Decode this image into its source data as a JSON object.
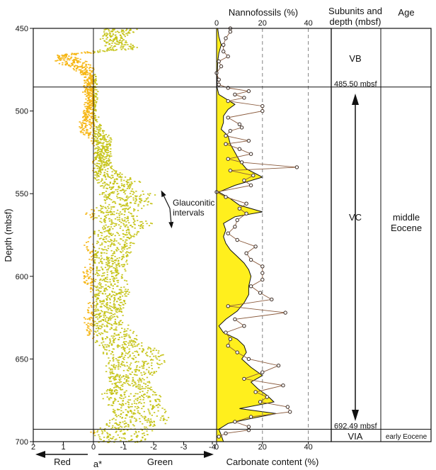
{
  "chart_data": {
    "type": "scatter",
    "depth_axis": {
      "label": "Depth (mbsf)",
      "min": 450,
      "max": 700,
      "ticks": [
        450,
        500,
        550,
        600,
        650,
        700
      ]
    },
    "color_panel": {
      "x_label": "a*",
      "x_range": [
        2,
        -4
      ],
      "x_ticks": [
        "2",
        "1",
        "0",
        "-1",
        "-2",
        "-3",
        "-4"
      ],
      "left_arrow_label": "Red",
      "right_arrow_label": "Green",
      "annotation": {
        "line1": "Glauconitic",
        "line2": "intervals",
        "arrow_points": [
          [
            -2.25,
            548
          ],
          [
            -2.6,
            571
          ]
        ]
      },
      "colors": {
        "red_points": "#f6b614",
        "green_points": "#c6c41a"
      },
      "profile": [
        [
          450,
          -0.35,
          -1.45
        ],
        [
          456,
          -0.25,
          -0.95
        ],
        [
          462,
          -0.4,
          -1.5
        ],
        [
          466,
          1.2,
          0.8
        ],
        [
          470,
          1.3,
          0.2
        ],
        [
          475,
          0.6,
          0.0
        ],
        [
          480,
          0.25,
          -0.05
        ],
        [
          486,
          0.35,
          -0.05
        ],
        [
          492,
          0.25,
          -0.1
        ],
        [
          500,
          0.3,
          -0.05
        ],
        [
          510,
          0.55,
          -0.25
        ],
        [
          518,
          0.1,
          -0.6
        ],
        [
          524,
          -0.1,
          -0.5
        ],
        [
          530,
          0.1,
          -0.5
        ],
        [
          536,
          0.0,
          -0.7
        ],
        [
          542,
          0.0,
          -1.5
        ],
        [
          546,
          -0.3,
          -1.2
        ],
        [
          550,
          -0.2,
          -2.0
        ],
        [
          556,
          -0.3,
          -1.9
        ],
        [
          562,
          0.3,
          -1.3
        ],
        [
          568,
          -0.3,
          -1.9
        ],
        [
          574,
          0.1,
          -1.4
        ],
        [
          580,
          0.3,
          -1.3
        ],
        [
          590,
          0.1,
          -1.1
        ],
        [
          600,
          0.45,
          -1.0
        ],
        [
          610,
          0.05,
          -1.1
        ],
        [
          618,
          0.2,
          -1.0
        ],
        [
          626,
          0.3,
          -0.9
        ],
        [
          632,
          0.4,
          -1.3
        ],
        [
          638,
          0.0,
          -1.5
        ],
        [
          646,
          -0.3,
          -2.3
        ],
        [
          654,
          -0.4,
          -2.3
        ],
        [
          660,
          -0.4,
          -1.9
        ],
        [
          666,
          -0.6,
          -1.8
        ],
        [
          672,
          -0.25,
          -2.2
        ],
        [
          678,
          -0.5,
          -2.2
        ],
        [
          684,
          -0.6,
          -2.7
        ],
        [
          690,
          -0.3,
          -2.3
        ],
        [
          694,
          0.1,
          -1.9
        ],
        [
          700,
          -0.2,
          -1.6
        ]
      ]
    },
    "carbonate_panel": {
      "top_label": "Nannofossils (%)",
      "bottom_label": "Carbonate content (%)",
      "x_range": [
        0,
        50
      ],
      "x_ticks": [
        0,
        20,
        40
      ],
      "dashed_gridlines": [
        20,
        40
      ],
      "colors": {
        "fill": "#ffef1d",
        "nannofossil_line": "#8a5a3c"
      },
      "carbonate": [
        [
          450,
          0.5
        ],
        [
          455,
          1
        ],
        [
          460,
          2
        ],
        [
          465,
          1
        ],
        [
          470,
          0.5
        ],
        [
          480,
          0.3
        ],
        [
          485.5,
          0.2
        ],
        [
          490,
          1
        ],
        [
          496,
          8
        ],
        [
          499,
          5
        ],
        [
          503,
          3
        ],
        [
          507,
          3
        ],
        [
          511,
          2
        ],
        [
          515,
          5
        ],
        [
          520,
          6
        ],
        [
          525,
          8
        ],
        [
          530,
          10
        ],
        [
          535,
          13
        ],
        [
          540,
          20
        ],
        [
          545,
          8
        ],
        [
          549,
          1
        ],
        [
          553,
          6
        ],
        [
          557,
          10
        ],
        [
          561,
          20
        ],
        [
          564,
          8
        ],
        [
          568,
          3
        ],
        [
          572,
          4
        ],
        [
          576,
          3
        ],
        [
          580,
          4
        ],
        [
          584,
          6
        ],
        [
          588,
          9
        ],
        [
          592,
          12
        ],
        [
          596,
          14
        ],
        [
          600,
          15
        ],
        [
          606,
          14
        ],
        [
          611,
          14
        ],
        [
          616,
          12
        ],
        [
          621,
          9
        ],
        [
          626,
          4
        ],
        [
          630,
          1
        ],
        [
          634,
          3
        ],
        [
          638,
          9
        ],
        [
          642,
          12
        ],
        [
          646,
          13
        ],
        [
          650,
          11
        ],
        [
          655,
          15
        ],
        [
          660,
          20
        ],
        [
          664,
          15
        ],
        [
          668,
          18
        ],
        [
          672,
          22
        ],
        [
          676,
          25
        ],
        [
          680,
          10
        ],
        [
          683,
          26
        ],
        [
          686,
          15
        ],
        [
          689,
          5
        ],
        [
          692.5,
          1
        ],
        [
          696,
          2
        ],
        [
          700,
          3
        ]
      ],
      "nannofossils": [
        [
          450,
          6
        ],
        [
          452,
          6
        ],
        [
          456,
          4
        ],
        [
          460,
          3
        ],
        [
          464,
          3
        ],
        [
          467,
          5
        ],
        [
          470,
          1
        ],
        [
          473,
          2
        ],
        [
          477,
          0
        ],
        [
          481,
          1
        ],
        [
          484,
          1
        ],
        [
          486,
          5
        ],
        [
          488,
          14
        ],
        [
          490,
          8
        ],
        [
          492,
          12
        ],
        [
          494,
          5
        ],
        [
          497,
          20
        ],
        [
          500,
          20
        ],
        [
          504,
          5
        ],
        [
          508,
          10
        ],
        [
          510,
          11
        ],
        [
          512,
          6
        ],
        [
          515,
          4
        ],
        [
          518,
          14
        ],
        [
          520,
          4
        ],
        [
          523,
          10
        ],
        [
          526,
          15
        ],
        [
          529,
          5
        ],
        [
          531,
          11
        ],
        [
          534,
          35
        ],
        [
          536,
          6
        ],
        [
          539,
          16
        ],
        [
          542,
          12
        ],
        [
          545,
          15
        ],
        [
          549,
          0
        ],
        [
          552,
          4
        ],
        [
          556,
          13
        ],
        [
          559,
          10
        ],
        [
          562,
          13
        ],
        [
          566,
          9
        ],
        [
          570,
          8
        ],
        [
          574,
          5
        ],
        [
          578,
          9
        ],
        [
          582,
          17
        ],
        [
          586,
          13
        ],
        [
          590,
          15
        ],
        [
          594,
          20
        ],
        [
          598,
          20
        ],
        [
          602,
          20
        ],
        [
          606,
          15
        ],
        [
          610,
          19
        ],
        [
          614,
          24
        ],
        [
          618,
          5
        ],
        [
          622,
          30
        ],
        [
          626,
          8
        ],
        [
          630,
          12
        ],
        [
          634,
          4
        ],
        [
          638,
          6
        ],
        [
          642,
          5
        ],
        [
          646,
          9
        ],
        [
          650,
          14
        ],
        [
          654,
          27
        ],
        [
          658,
          20
        ],
        [
          662,
          12
        ],
        [
          666,
          29
        ],
        [
          670,
          17
        ],
        [
          673,
          22
        ],
        [
          676,
          19
        ],
        [
          679,
          31
        ],
        [
          682,
          32
        ],
        [
          685,
          15
        ],
        [
          688,
          8
        ],
        [
          691,
          14
        ],
        [
          693,
          14
        ],
        [
          695,
          4
        ],
        [
          697,
          1
        ]
      ]
    },
    "subunits": {
      "header_line1": "Subunits and",
      "header_line2": "depth (mbsf)",
      "boundaries": [
        {
          "depth": 485.5,
          "label": "485.50 mbsf"
        },
        {
          "depth": 692.49,
          "label": "692.49 mbsf"
        }
      ],
      "units": [
        {
          "name": "VB",
          "label_depth": 468
        },
        {
          "name": "VC",
          "label_depth": 564
        },
        {
          "name": "VIA",
          "label_depth": 696.5
        }
      ]
    },
    "age": {
      "header": "Age",
      "labels": [
        {
          "line1": "middle",
          "line2": "Eocene",
          "label_depth": 567
        },
        {
          "line1": "early Eocene",
          "line2": "",
          "label_depth": 696.5
        }
      ]
    }
  }
}
